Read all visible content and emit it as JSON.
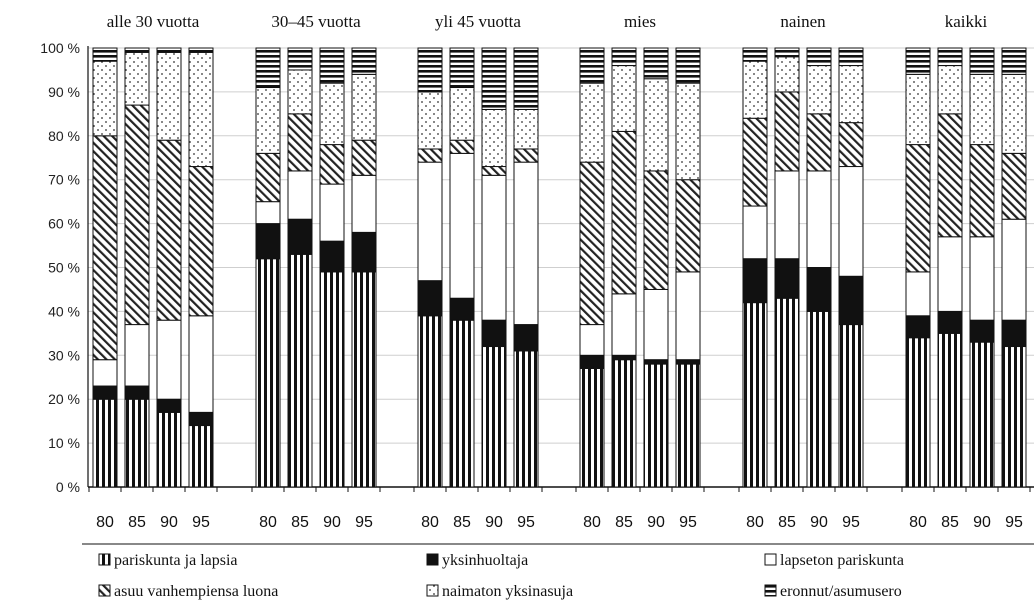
{
  "chart_data": {
    "type": "bar",
    "stacked": true,
    "y_ticks": [
      "0 %",
      "10 %",
      "20 %",
      "30 %",
      "40 %",
      "50 %",
      "60 %",
      "70 %",
      "80 %",
      "90 %",
      "100 %"
    ],
    "ylim": [
      0,
      100
    ],
    "grid": true,
    "legend_position": "bottom",
    "groups": [
      {
        "title": "alle 30 vuotta",
        "categories": [
          "80",
          "85",
          "90",
          "95"
        ]
      },
      {
        "title": "30–45 vuotta",
        "categories": [
          "80",
          "85",
          "90",
          "95"
        ]
      },
      {
        "title": "yli 45 vuotta",
        "categories": [
          "80",
          "85",
          "90",
          "95"
        ]
      },
      {
        "title": "mies",
        "categories": [
          "80",
          "85",
          "90",
          "95"
        ]
      },
      {
        "title": "nainen",
        "categories": [
          "80",
          "85",
          "90",
          "95"
        ]
      },
      {
        "title": "kaikki",
        "categories": [
          "80",
          "85",
          "90",
          "95"
        ]
      }
    ],
    "series": [
      {
        "name": "pariskunta ja lapsia",
        "pattern": "vertical-stripes",
        "values": [
          [
            20,
            20,
            17,
            14
          ],
          [
            52,
            53,
            49,
            49
          ],
          [
            39,
            38,
            32,
            31
          ],
          [
            27,
            29,
            28,
            28
          ],
          [
            42,
            43,
            40,
            37
          ],
          [
            34,
            35,
            33,
            32
          ]
        ]
      },
      {
        "name": "yksinhuoltaja",
        "pattern": "solid-black",
        "values": [
          [
            3,
            3,
            3,
            3
          ],
          [
            8,
            8,
            7,
            9
          ],
          [
            8,
            5,
            6,
            6
          ],
          [
            3,
            1,
            1,
            1
          ],
          [
            10,
            9,
            10,
            11
          ],
          [
            5,
            5,
            5,
            6
          ]
        ]
      },
      {
        "name": "lapseton pariskunta",
        "pattern": "white",
        "values": [
          [
            6,
            14,
            18,
            22
          ],
          [
            5,
            11,
            13,
            13
          ],
          [
            27,
            33,
            33,
            37
          ],
          [
            7,
            14,
            16,
            20
          ],
          [
            12,
            20,
            22,
            25
          ],
          [
            10,
            17,
            19,
            23
          ]
        ]
      },
      {
        "name": "asuu vanhempiensa luona",
        "pattern": "diagonal-hatch",
        "values": [
          [
            51,
            50,
            41,
            34
          ],
          [
            11,
            13,
            9,
            8
          ],
          [
            3,
            3,
            2,
            3
          ],
          [
            37,
            37,
            27,
            21
          ],
          [
            20,
            18,
            13,
            10
          ],
          [
            29,
            28,
            21,
            15
          ]
        ]
      },
      {
        "name": "naimaton yksinasuja",
        "pattern": "dotted",
        "values": [
          [
            17,
            12,
            20,
            26
          ],
          [
            15,
            10,
            14,
            15
          ],
          [
            13,
            12,
            13,
            9
          ],
          [
            18,
            15,
            21,
            22
          ],
          [
            13,
            8,
            11,
            13
          ],
          [
            16,
            11,
            16,
            18
          ]
        ]
      },
      {
        "name": "eronnut/asumusero",
        "pattern": "horizontal-stripes",
        "values": [
          [
            3,
            1,
            1,
            1
          ],
          [
            9,
            5,
            8,
            6
          ],
          [
            10,
            9,
            14,
            14
          ],
          [
            8,
            4,
            7,
            8
          ],
          [
            3,
            2,
            4,
            4
          ],
          [
            6,
            4,
            6,
            6
          ]
        ]
      }
    ]
  },
  "colors": {
    "ink": "#111111",
    "grid": "#cfcfcf",
    "background": "#ffffff"
  }
}
